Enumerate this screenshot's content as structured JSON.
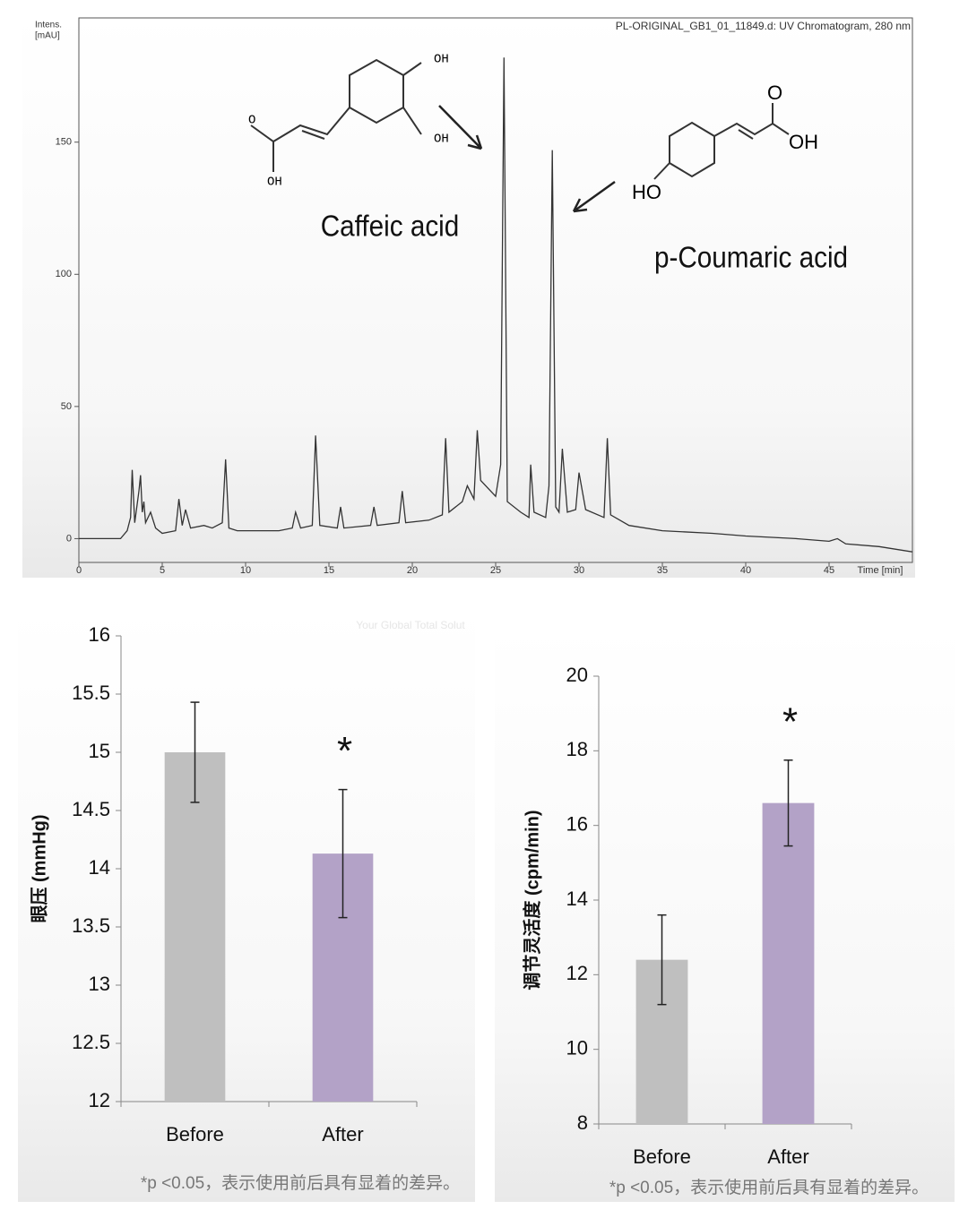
{
  "chart_data": [
    {
      "type": "line",
      "title": "PL-ORIGINAL_GB1_01_11849.d: UV Chromatogram, 280 nm",
      "y_label": [
        "Intens.",
        "[mAU]"
      ],
      "x_label": "Time [min]",
      "annotations": [
        "Caffeic acid",
        "p-Coumaric acid"
      ],
      "structure_labels": [
        "OH",
        "OH",
        "O",
        "OH",
        "O",
        "OH",
        "HO"
      ],
      "color": "#333333",
      "xlim": [
        0,
        50
      ],
      "xticks": [
        0,
        5,
        10,
        15,
        20,
        25,
        30,
        35,
        40,
        45
      ],
      "ylim": [
        -9,
        197
      ],
      "yticks": [
        0,
        50,
        100,
        150
      ],
      "x": [
        0,
        2.5,
        2.9,
        3.1,
        3.2,
        3.35,
        3.6,
        3.7,
        3.8,
        3.9,
        4.0,
        4.3,
        4.6,
        5.0,
        5.8,
        6.0,
        6.2,
        6.4,
        6.7,
        7.5,
        8.0,
        8.6,
        8.8,
        9.0,
        9.5,
        12.0,
        12.8,
        13.0,
        13.3,
        14.0,
        14.2,
        14.45,
        15.5,
        15.7,
        15.9,
        17.5,
        17.7,
        17.9,
        19.2,
        19.4,
        19.6,
        21.0,
        21.8,
        22.0,
        22.2,
        23.0,
        23.3,
        23.7,
        23.9,
        24.1,
        25.0,
        25.3,
        25.5,
        25.7,
        26.5,
        27.0,
        27.1,
        27.3,
        28.0,
        28.2,
        28.4,
        28.6,
        28.8,
        29.0,
        29.3,
        29.8,
        30.0,
        30.4,
        31.5,
        31.7,
        31.9,
        33.0,
        35.0,
        38.0,
        40.0,
        43.0,
        45.0,
        45.5,
        46.0,
        48.0,
        50.0
      ],
      "values": [
        0,
        0,
        3,
        8,
        26,
        6,
        18,
        24,
        10,
        14,
        6,
        10,
        4,
        2,
        3,
        15,
        5,
        11,
        4,
        5,
        4,
        6,
        30,
        4,
        3,
        3,
        4,
        10,
        4,
        5,
        39,
        5,
        4,
        12,
        4,
        5,
        12,
        5,
        6,
        18,
        6,
        7,
        9,
        38,
        10,
        14,
        20,
        15,
        41,
        22,
        16,
        28,
        182,
        14,
        10,
        8,
        28,
        10,
        8,
        20,
        147,
        12,
        10,
        34,
        10,
        11,
        25,
        11,
        8,
        38,
        9,
        5,
        3,
        2,
        1,
        0,
        -1,
        0,
        -2,
        -3,
        -5
      ]
    },
    {
      "type": "bar",
      "y_label": "眼压 (mmHg)",
      "watermark": "Your Global Total Solut",
      "categories": [
        "Before",
        "After"
      ],
      "values": [
        15.0,
        14.13
      ],
      "errors": [
        0.43,
        0.55
      ],
      "colors": [
        "#bfbfbf",
        "#b3a2c7"
      ],
      "annotations": [
        "*"
      ],
      "footnote": "*p <0.05，表示使用前后具有显着的差异。",
      "ylim": [
        12,
        16
      ],
      "yticks": [
        12,
        12.5,
        13,
        13.5,
        14,
        14.5,
        15,
        15.5,
        16
      ]
    },
    {
      "type": "bar",
      "y_label": "调节灵活度 (cpm/min)",
      "categories": [
        "Before",
        "After"
      ],
      "values": [
        12.4,
        16.6
      ],
      "errors": [
        1.2,
        1.15
      ],
      "colors": [
        "#bfbfbf",
        "#b3a2c7"
      ],
      "annotations": [
        "*"
      ],
      "footnote": "*p <0.05，表示使用前后具有显着的差异。",
      "ylim": [
        8,
        20
      ],
      "yticks": [
        8,
        10,
        12,
        14,
        16,
        18,
        20
      ]
    }
  ]
}
